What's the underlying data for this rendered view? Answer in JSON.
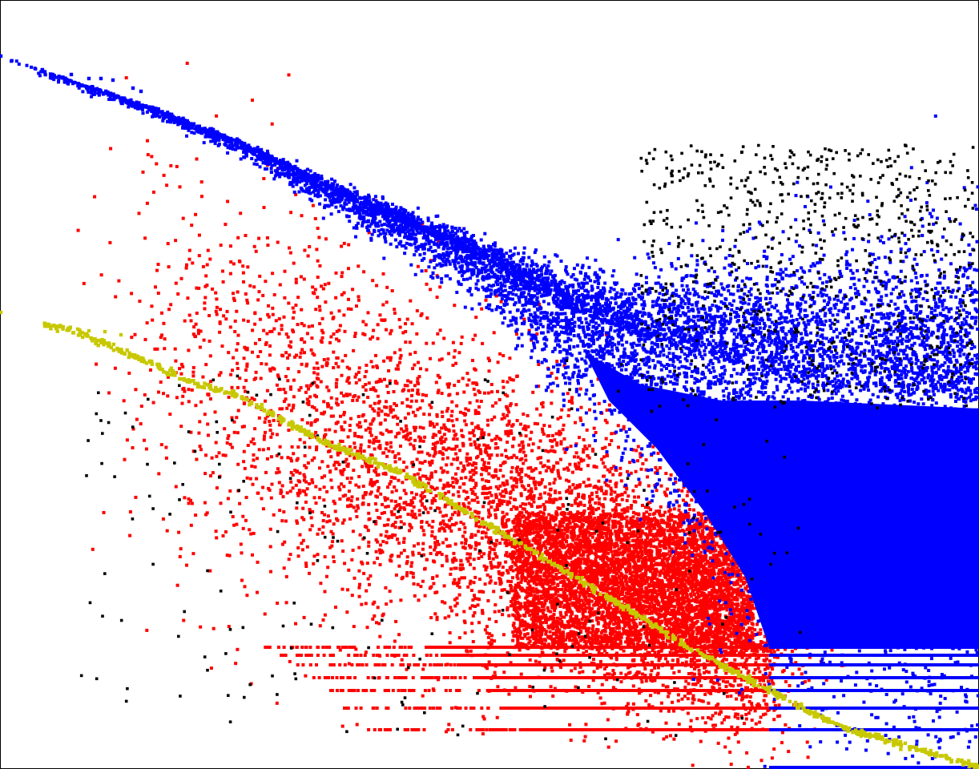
{
  "chart_data": {
    "type": "scatter",
    "scale": {
      "x": "log",
      "y": "log"
    },
    "xlim": [
      0,
      1000
    ],
    "ylim": [
      0,
      1000
    ],
    "grid": false,
    "legend": "none",
    "colors": {
      "blue": "#0000ff",
      "red": "#ff0000",
      "black": "#000000",
      "yellow": "#c8c800"
    },
    "series": [
      {
        "color_key": "blue",
        "shape": "band-descending-then-flat",
        "curve": [
          [
            0,
            70
          ],
          [
            55,
            90
          ],
          [
            180,
            133
          ],
          [
            300,
            180
          ],
          [
            450,
            255
          ],
          [
            600,
            320
          ],
          [
            700,
            380
          ],
          [
            800,
            420
          ],
          [
            900,
            450
          ],
          [
            1000,
            480
          ],
          [
            1222,
            500
          ]
        ],
        "band_spread": [
          [
            0,
            2
          ],
          [
            300,
            6
          ],
          [
            600,
            25
          ],
          [
            800,
            80
          ],
          [
            1000,
            200
          ],
          [
            1222,
            230
          ]
        ],
        "density": 9000,
        "discrete_rows": [
          808,
          818,
          830,
          846,
          862,
          884,
          911,
          958
        ],
        "discrete_row_start": 920
      },
      {
        "color_key": "red",
        "shape": "cloud-under-blue",
        "center": [
          720,
          760
        ],
        "spread": [
          220,
          160
        ],
        "density": 6000,
        "discrete_rows": [
          808,
          818,
          830,
          846,
          862,
          884,
          911
        ],
        "discrete_row_range": [
          520,
          960
        ]
      },
      {
        "color_key": "black",
        "shape": "scattered-outliers",
        "density": 1600
      },
      {
        "color_key": "yellow",
        "shape": "descending-line",
        "curve": [
          [
            0,
            390
          ],
          [
            55,
            407
          ],
          [
            85,
            410
          ],
          [
            180,
            450
          ],
          [
            245,
            480
          ],
          [
            300,
            495
          ],
          [
            400,
            550
          ],
          [
            500,
            590
          ],
          [
            600,
            650
          ],
          [
            700,
            710
          ],
          [
            800,
            770
          ],
          [
            860,
            808
          ],
          [
            900,
            830
          ],
          [
            930,
            846
          ],
          [
            960,
            862
          ],
          [
            1000,
            884
          ],
          [
            1060,
            911
          ],
          [
            1222,
            958
          ]
        ],
        "density": 900
      }
    ]
  }
}
